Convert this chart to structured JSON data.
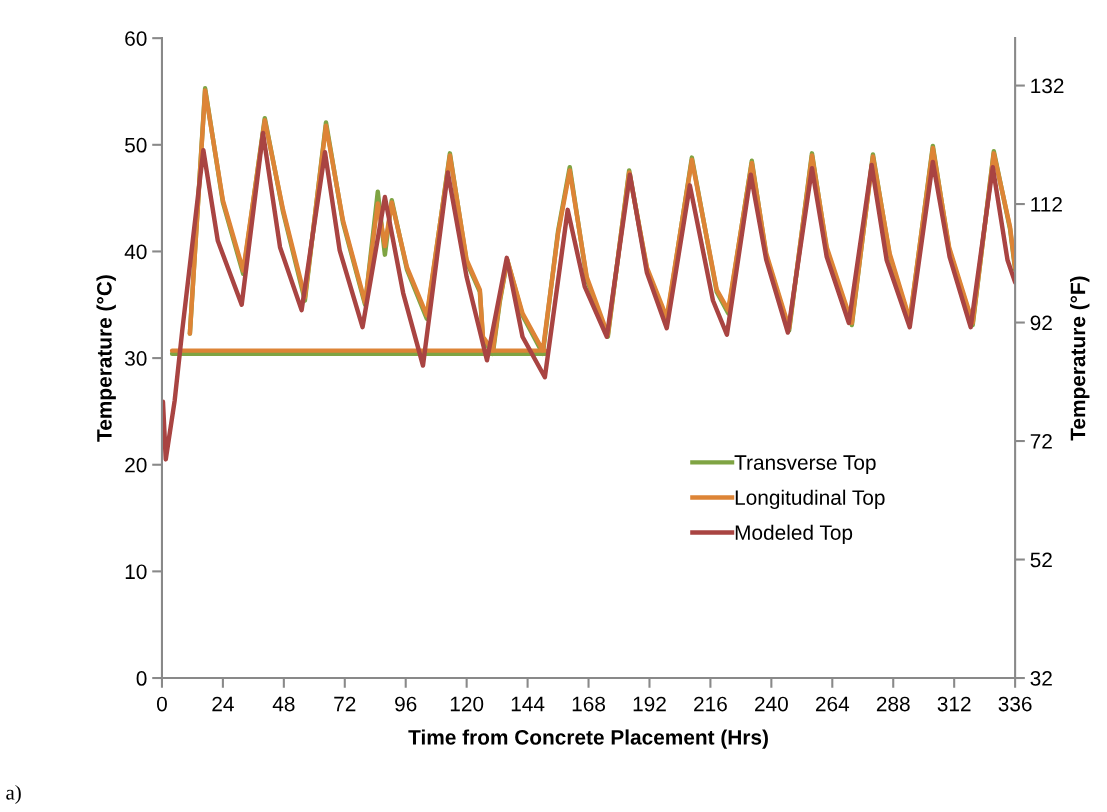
{
  "chart_data": {
    "type": "line",
    "xlabel": "Time from Concrete Placement (Hrs)",
    "ylabel": "Temperature (°C)",
    "y2label": "Temperature (°F)",
    "xlim": [
      0,
      336
    ],
    "xticks": [
      0,
      24,
      48,
      72,
      96,
      120,
      144,
      168,
      192,
      216,
      240,
      264,
      288,
      312,
      336
    ],
    "ylim": [
      0,
      60
    ],
    "yticks": [
      0,
      10,
      20,
      30,
      40,
      50,
      60
    ],
    "y2lim": [
      32,
      140
    ],
    "y2ticks": [
      32,
      52,
      72,
      92,
      112,
      132
    ],
    "grid": false,
    "legend": "bottom right",
    "line_style": "solid",
    "marker": "none",
    "annotations": [
      "a)"
    ],
    "series": [
      {
        "name": "Transverse Top",
        "color": "#7fa443",
        "x": [
          4,
          151,
          null,
          11,
          17,
          24,
          32,
          40.5,
          47.7,
          56.3,
          64.6,
          71.3,
          80,
          85,
          87.8,
          90.5,
          96.5,
          104.3,
          113.4,
          120,
          125.2,
          126.4,
          130.3,
          133,
          136,
          142,
          150,
          156,
          160.6,
          167.3,
          175.6,
          184,
          191,
          198.8,
          208.7,
          218.5,
          223,
          232.3,
          238,
          247,
          256,
          261.8,
          271.7,
          280,
          286.6,
          294.5,
          303.6,
          310,
          319.3,
          327.6,
          334,
          336
        ],
        "values": [
          30.4,
          30.4,
          null,
          32.3,
          55.3,
          44.6,
          37.9,
          52.5,
          43.7,
          35.4,
          52.1,
          42.7,
          35,
          45.6,
          39.7,
          44.8,
          38.3,
          33.7,
          49.2,
          39,
          36.2,
          31.8,
          30.4,
          35.2,
          39.2,
          34,
          30.4,
          41.9,
          47.9,
          37.4,
          32,
          47.6,
          38.3,
          33.5,
          48.8,
          36.2,
          34.2,
          48.5,
          39.6,
          32.6,
          49.2,
          40.2,
          33.1,
          49.1,
          39.6,
          33.4,
          49.9,
          40.2,
          33.1,
          49.4,
          42.1,
          38.3
        ]
      },
      {
        "name": "Longitudinal Top",
        "color": "#dd8436",
        "x": [
          4,
          151,
          null,
          11,
          17,
          24,
          32,
          40.5,
          47.7,
          56.3,
          64.6,
          71.3,
          80,
          85,
          87.8,
          90.5,
          96.5,
          104.3,
          113.4,
          120,
          125.2,
          126.4,
          130.3,
          133,
          136,
          142,
          150,
          156,
          160.6,
          167.3,
          175.6,
          184,
          191,
          198.8,
          208.7,
          218.5,
          223,
          232.3,
          238,
          247,
          256,
          261.8,
          271.7,
          280,
          286.6,
          294.5,
          303.6,
          310,
          319.3,
          327.6,
          334,
          336
        ],
        "values": [
          30.7,
          30.7,
          null,
          32.3,
          55.1,
          44.8,
          38.2,
          52.3,
          43.9,
          35.7,
          51.8,
          42.9,
          35.2,
          44.5,
          40.5,
          44.6,
          38.5,
          34,
          49,
          39.2,
          36.4,
          32,
          30.7,
          35.4,
          39.2,
          34.2,
          30.7,
          41.7,
          47.6,
          37.6,
          32.2,
          47.4,
          38.5,
          33.8,
          48.6,
          36.4,
          34.5,
          48.3,
          39.8,
          32.8,
          49,
          40.4,
          33.3,
          48.9,
          39.8,
          33.6,
          49.7,
          40.4,
          33.3,
          49.2,
          42.3,
          38.5
        ]
      },
      {
        "name": "Modeled Top",
        "color": "#a94442",
        "x": [
          0.4,
          1.5,
          5,
          8,
          16.3,
          22,
          31.4,
          39.8,
          46.5,
          55,
          64.2,
          70,
          79,
          87.8,
          95,
          102.8,
          112.6,
          120,
          128,
          135.8,
          142,
          150.8,
          159.8,
          166.5,
          175.2,
          184.3,
          191,
          198.8,
          207.9,
          217,
          222.5,
          231.9,
          238,
          246.5,
          256,
          261.8,
          270.5,
          279.5,
          285.4,
          294.5,
          303.6,
          310.2,
          318.5,
          327.2,
          333,
          336
        ],
        "values": [
          25.9,
          20.5,
          26,
          32.6,
          49.5,
          41,
          35,
          51.1,
          40.4,
          34.5,
          49.3,
          40.1,
          32.9,
          45.1,
          36.1,
          29.3,
          47.4,
          37.6,
          29.8,
          39.4,
          32,
          28.2,
          43.9,
          36.7,
          32,
          47.2,
          38,
          32.8,
          46.2,
          35.4,
          32.2,
          47.2,
          39.2,
          32.4,
          47.8,
          39.5,
          33.3,
          48.1,
          39.2,
          32.9,
          48.4,
          39.5,
          32.9,
          47.9,
          39.2,
          37.1
        ]
      }
    ]
  }
}
